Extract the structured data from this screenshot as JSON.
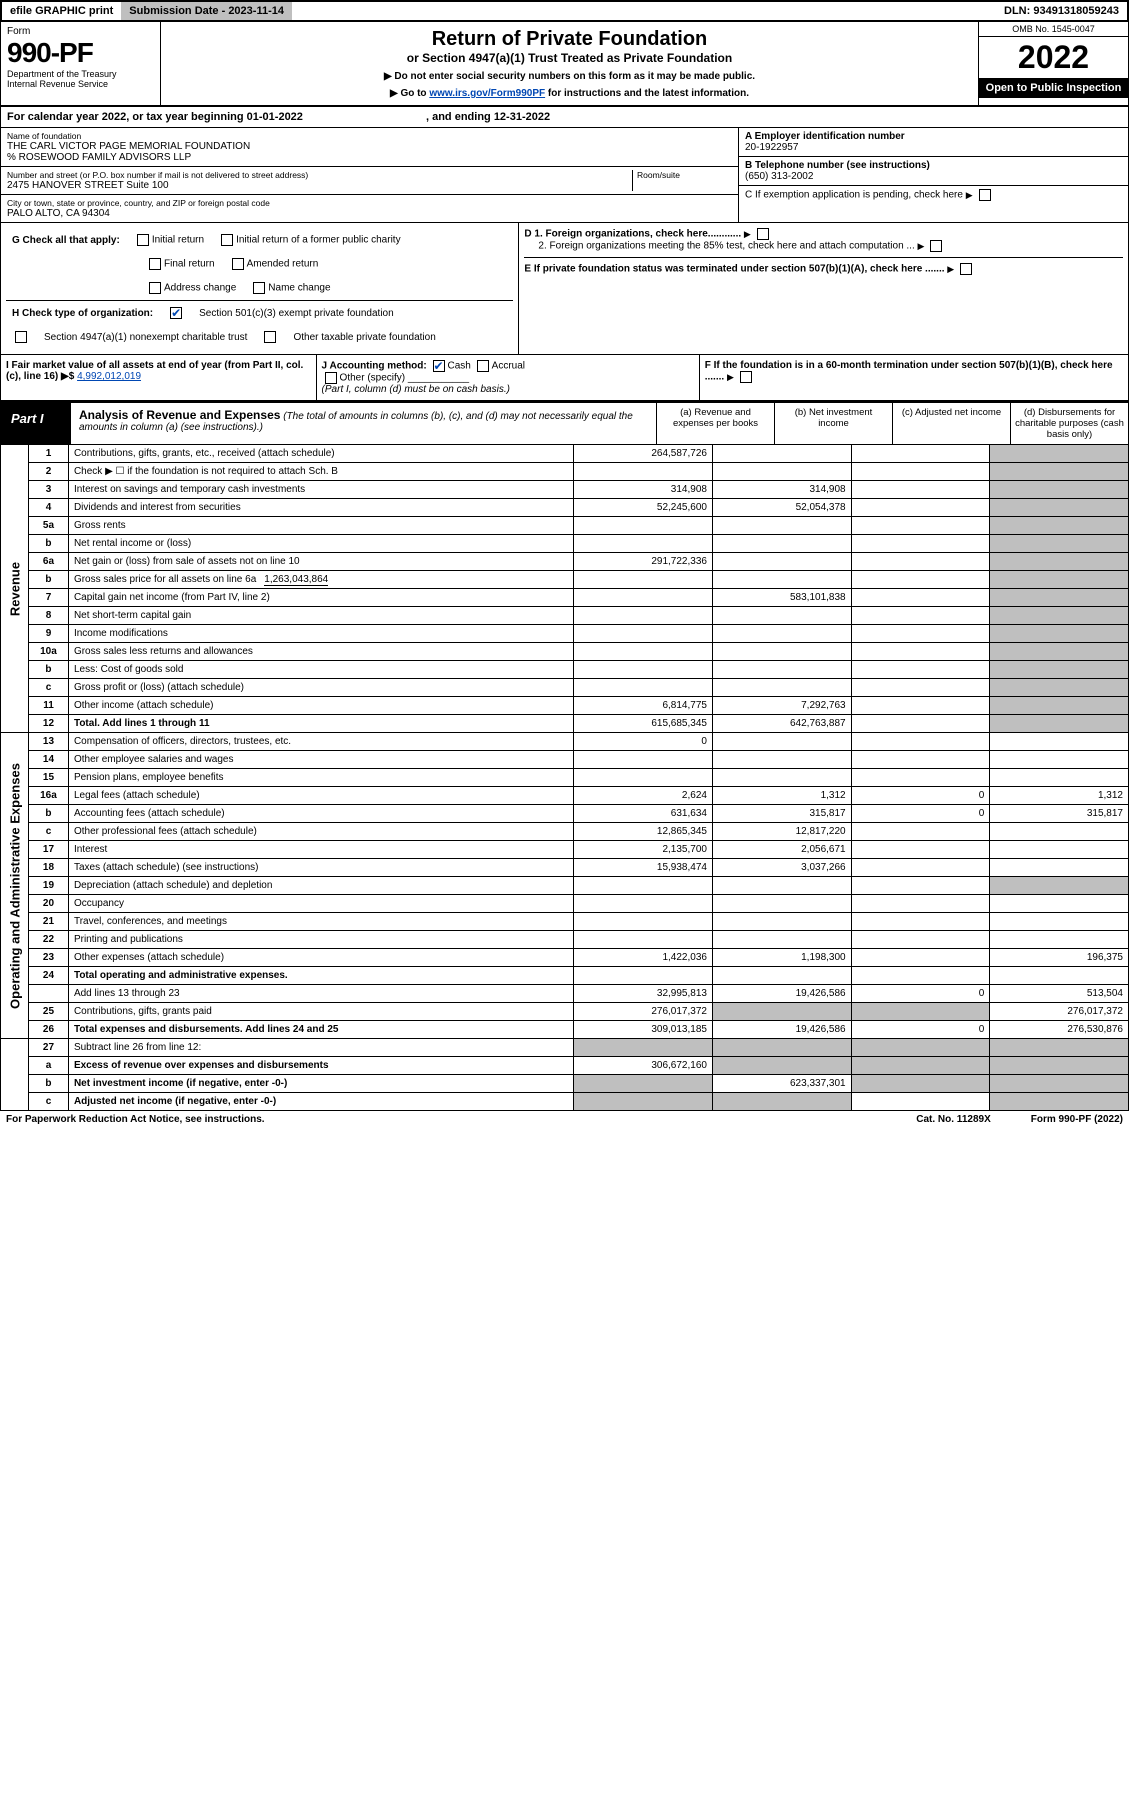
{
  "topbar": {
    "efile": "efile GRAPHIC print",
    "sub": "Submission Date - 2023-11-14",
    "dln": "DLN: 93491318059243"
  },
  "header": {
    "form": "Form",
    "number": "990-PF",
    "dept": "Department of the Treasury",
    "irs": "Internal Revenue Service",
    "title": "Return of Private Foundation",
    "subtitle": "or Section 4947(a)(1) Trust Treated as Private Foundation",
    "note1": "▶ Do not enter social security numbers on this form as it may be made public.",
    "note2": "▶ Go to ",
    "note2link": "www.irs.gov/Form990PF",
    "note2b": " for instructions and the latest information.",
    "omb": "OMB No. 1545-0047",
    "year": "2022",
    "open": "Open to Public Inspection"
  },
  "calrow": {
    "a": "For calendar year 2022, or tax year beginning 01-01-2022",
    "b": ", and ending 12-31-2022"
  },
  "info": {
    "name_lbl": "Name of foundation",
    "name": "THE CARL VICTOR PAGE MEMORIAL FOUNDATION",
    "name2": "% ROSEWOOD FAMILY ADVISORS LLP",
    "addr_lbl": "Number and street (or P.O. box number if mail is not delivered to street address)",
    "room_lbl": "Room/suite",
    "addr": "2475 HANOVER STREET Suite 100",
    "city_lbl": "City or town, state or province, country, and ZIP or foreign postal code",
    "city": "PALO ALTO, CA  94304",
    "a_lbl": "A Employer identification number",
    "a": "20-1922957",
    "b_lbl": "B Telephone number (see instructions)",
    "b": "(650) 313-2002",
    "c": "C If exemption application is pending, check here",
    "d1": "D 1. Foreign organizations, check here............",
    "d2": "2. Foreign organizations meeting the 85% test, check here and attach computation ...",
    "e": "E  If private foundation status was terminated under section 507(b)(1)(A), check here .......",
    "f": "F  If the foundation is in a 60-month termination under section 507(b)(1)(B), check here ......."
  },
  "g": {
    "lbl": "G Check all that apply:",
    "o1": "Initial return",
    "o2": "Initial return of a former public charity",
    "o3": "Final return",
    "o4": "Amended return",
    "o5": "Address change",
    "o6": "Name change"
  },
  "h": {
    "lbl": "H Check type of organization:",
    "o1": "Section 501(c)(3) exempt private foundation",
    "o2": "Section 4947(a)(1) nonexempt charitable trust",
    "o3": "Other taxable private foundation"
  },
  "i": {
    "lbl": "I Fair market value of all assets at end of year (from Part II, col. (c), line 16) ▶$",
    "val": "4,992,012,019"
  },
  "j": {
    "lbl": "J Accounting method:",
    "o1": "Cash",
    "o2": "Accrual",
    "o3": "Other (specify)",
    "note": "(Part I, column (d) must be on cash basis.)"
  },
  "part1": {
    "label": "Part I",
    "title": "Analysis of Revenue and Expenses",
    "titlenote": " (The total of amounts in columns (b), (c), and (d) may not necessarily equal the amounts in column (a) (see instructions).)",
    "colA": "(a)    Revenue and expenses per books",
    "colB": "(b)    Net investment income",
    "colC": "(c)   Adjusted net income",
    "colD": "(d)   Disbursements for charitable purposes (cash basis only)",
    "vlabel_rev": "Revenue",
    "vlabel_exp": "Operating and Administrative Expenses"
  },
  "rows": [
    {
      "n": "1",
      "d": "Contributions, gifts, grants, etc., received (attach schedule)",
      "a": "264,587,726"
    },
    {
      "n": "2",
      "d": "Check ▶ ☐ if the foundation is not required to attach Sch. B",
      "dots": true
    },
    {
      "n": "3",
      "d": "Interest on savings and temporary cash investments",
      "a": "314,908",
      "b": "314,908"
    },
    {
      "n": "4",
      "d": "Dividends and interest from securities",
      "a": "52,245,600",
      "b": "52,054,378",
      "dots": true
    },
    {
      "n": "5a",
      "d": "Gross rents",
      "dots": true
    },
    {
      "n": "b",
      "d": "Net rental income or (loss)"
    },
    {
      "n": "6a",
      "d": "Net gain or (loss) from sale of assets not on line 10",
      "a": "291,722,336"
    },
    {
      "n": "b",
      "d": "Gross sales price for all assets on line 6a",
      "inline": "1,263,043,864"
    },
    {
      "n": "7",
      "d": "Capital gain net income (from Part IV, line 2)",
      "b": "583,101,838",
      "dots": true
    },
    {
      "n": "8",
      "d": "Net short-term capital gain",
      "dots": true
    },
    {
      "n": "9",
      "d": "Income modifications",
      "dots": true
    },
    {
      "n": "10a",
      "d": "Gross sales less returns and allowances"
    },
    {
      "n": "b",
      "d": "Less: Cost of goods sold",
      "dots": true
    },
    {
      "n": "c",
      "d": "Gross profit or (loss) (attach schedule)",
      "dots": true
    },
    {
      "n": "11",
      "d": "Other income (attach schedule)",
      "a": "6,814,775",
      "b": "7,292,763",
      "dots": true
    },
    {
      "n": "12",
      "d": "Total. Add lines 1 through 11",
      "a": "615,685,345",
      "b": "642,763,887",
      "bold": true,
      "dots": true
    }
  ],
  "rows2": [
    {
      "n": "13",
      "d": "Compensation of officers, directors, trustees, etc.",
      "a": "0"
    },
    {
      "n": "14",
      "d": "Other employee salaries and wages",
      "dots": true
    },
    {
      "n": "15",
      "d": "Pension plans, employee benefits",
      "dots": true
    },
    {
      "n": "16a",
      "d": "Legal fees (attach schedule)",
      "a": "2,624",
      "b": "1,312",
      "c": "0",
      "dd": "1,312",
      "dots": true
    },
    {
      "n": "b",
      "d": "Accounting fees (attach schedule)",
      "a": "631,634",
      "b": "315,817",
      "c": "0",
      "dd": "315,817",
      "dots": true
    },
    {
      "n": "c",
      "d": "Other professional fees (attach schedule)",
      "a": "12,865,345",
      "b": "12,817,220",
      "dots": true
    },
    {
      "n": "17",
      "d": "Interest",
      "a": "2,135,700",
      "b": "2,056,671",
      "dots": true
    },
    {
      "n": "18",
      "d": "Taxes (attach schedule) (see instructions)",
      "a": "15,938,474",
      "b": "3,037,266",
      "dots": true
    },
    {
      "n": "19",
      "d": "Depreciation (attach schedule) and depletion",
      "dots": true
    },
    {
      "n": "20",
      "d": "Occupancy",
      "dots": true
    },
    {
      "n": "21",
      "d": "Travel, conferences, and meetings",
      "dots": true
    },
    {
      "n": "22",
      "d": "Printing and publications",
      "dots": true
    },
    {
      "n": "23",
      "d": "Other expenses (attach schedule)",
      "a": "1,422,036",
      "b": "1,198,300",
      "dd": "196,375",
      "dots": true
    },
    {
      "n": "24",
      "d": "Total operating and administrative expenses.",
      "bold": true
    },
    {
      "n": "",
      "d": "Add lines 13 through 23",
      "a": "32,995,813",
      "b": "19,426,586",
      "c": "0",
      "dd": "513,504",
      "dots": true
    },
    {
      "n": "25",
      "d": "Contributions, gifts, grants paid",
      "a": "276,017,372",
      "dd": "276,017,372",
      "dots": true
    },
    {
      "n": "26",
      "d": "Total expenses and disbursements. Add lines 24 and 25",
      "a": "309,013,185",
      "b": "19,426,586",
      "c": "0",
      "dd": "276,530,876",
      "bold": true
    }
  ],
  "rows3": [
    {
      "n": "27",
      "d": "Subtract line 26 from line 12:"
    },
    {
      "n": "a",
      "d": "Excess of revenue over expenses and disbursements",
      "a": "306,672,160",
      "bold": true
    },
    {
      "n": "b",
      "d": "Net investment income (if negative, enter -0-)",
      "b": "623,337,301",
      "bold": true
    },
    {
      "n": "c",
      "d": "Adjusted net income (if negative, enter -0-)",
      "bold": true,
      "dots": true
    }
  ],
  "footer": {
    "l": "For Paperwork Reduction Act Notice, see instructions.",
    "c": "Cat. No. 11289X",
    "r": "Form 990-PF (2022)"
  },
  "colors": {
    "shade": "#bfbfbf",
    "link": "#0047b3"
  }
}
